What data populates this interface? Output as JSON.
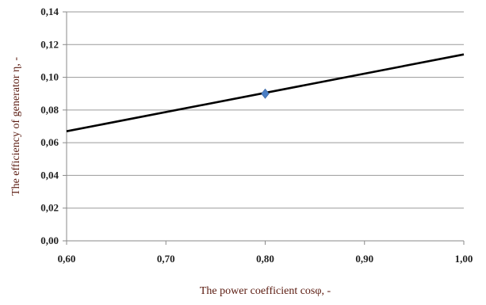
{
  "chart_data": {
    "type": "line",
    "title": "",
    "xlabel": "The power coefficient cosφ, -",
    "ylabel": "The efficiency of generator η, -",
    "xlim": [
      0.6,
      1.0
    ],
    "ylim": [
      0.0,
      0.14
    ],
    "x_ticks": [
      "0,60",
      "0,70",
      "0,80",
      "0,90",
      "1,00"
    ],
    "y_ticks": [
      "0,00",
      "0,02",
      "0,04",
      "0,06",
      "0,08",
      "0,10",
      "0,12",
      "0,14"
    ],
    "grid": "horizontal",
    "series": [
      {
        "type": "line",
        "x": [
          0.6,
          1.0
        ],
        "y": [
          0.067,
          0.114
        ],
        "color": "#000000"
      },
      {
        "type": "scatter",
        "marker": "diamond",
        "x": [
          0.8
        ],
        "y": [
          0.09
        ],
        "color": "#4a7ec4"
      }
    ]
  }
}
